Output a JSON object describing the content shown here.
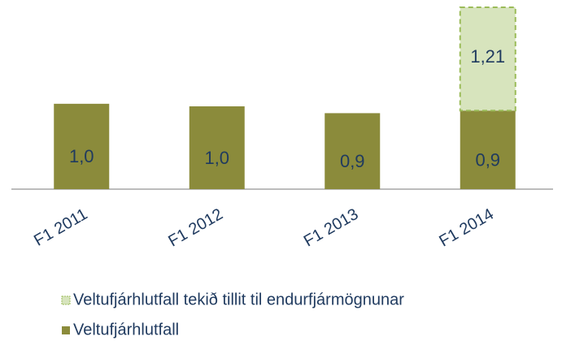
{
  "chart_data": {
    "type": "bar",
    "stacked": true,
    "categories": [
      "F1 2011",
      "F1 2012",
      "F1 2013",
      "F1 2014"
    ],
    "series": [
      {
        "name": "Veltufjárhlutfall",
        "color": "#8b8b3b",
        "values": [
          1.0,
          0.97,
          0.89,
          0.92
        ],
        "value_labels": [
          "1,0",
          "1,0",
          "0,9",
          "0,9"
        ]
      },
      {
        "name": "Veltufjárhlutfall tekið tillit til endurfjármögnunar",
        "color": "#d7e4bd",
        "border": "#9bbb59",
        "dashed": true,
        "values": [
          null,
          null,
          null,
          1.21
        ],
        "value_labels": [
          null,
          null,
          null,
          "1,21"
        ]
      }
    ]
  }
}
